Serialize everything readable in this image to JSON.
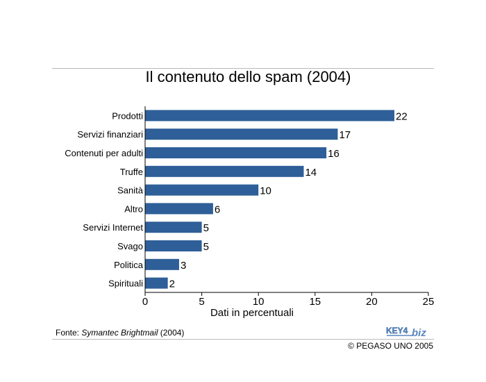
{
  "chart_data": {
    "type": "bar",
    "orientation": "horizontal",
    "title": "Il contenuto dello spam (2004)",
    "xlabel": "Dati in percentuali",
    "ylabel": "",
    "categories": [
      "Prodotti",
      "Servizi finanziari",
      "Contenuti per adulti",
      "Truffe",
      "Sanità",
      "Altro",
      "Servizi Internet",
      "Svago",
      "Politica",
      "Spirituali"
    ],
    "values": [
      22,
      17,
      16,
      14,
      10,
      6,
      5,
      5,
      3,
      2
    ],
    "xlim": [
      0,
      25
    ],
    "x_ticks": [
      0,
      5,
      10,
      15,
      20,
      25
    ],
    "bar_color": "#2e5f98",
    "grid": false,
    "data_labels": true
  },
  "footer": {
    "source_prefix": "Fonte: ",
    "source_name": "Symantec Brightmail",
    "source_year": " (2004)",
    "logo_text_left": "KEY4",
    "logo_text_right": "biz",
    "copyright": "© PEGASO UNO 2005"
  },
  "colors": {
    "logo_blue": "#5a86c2",
    "rule": "#b9b9b9"
  }
}
